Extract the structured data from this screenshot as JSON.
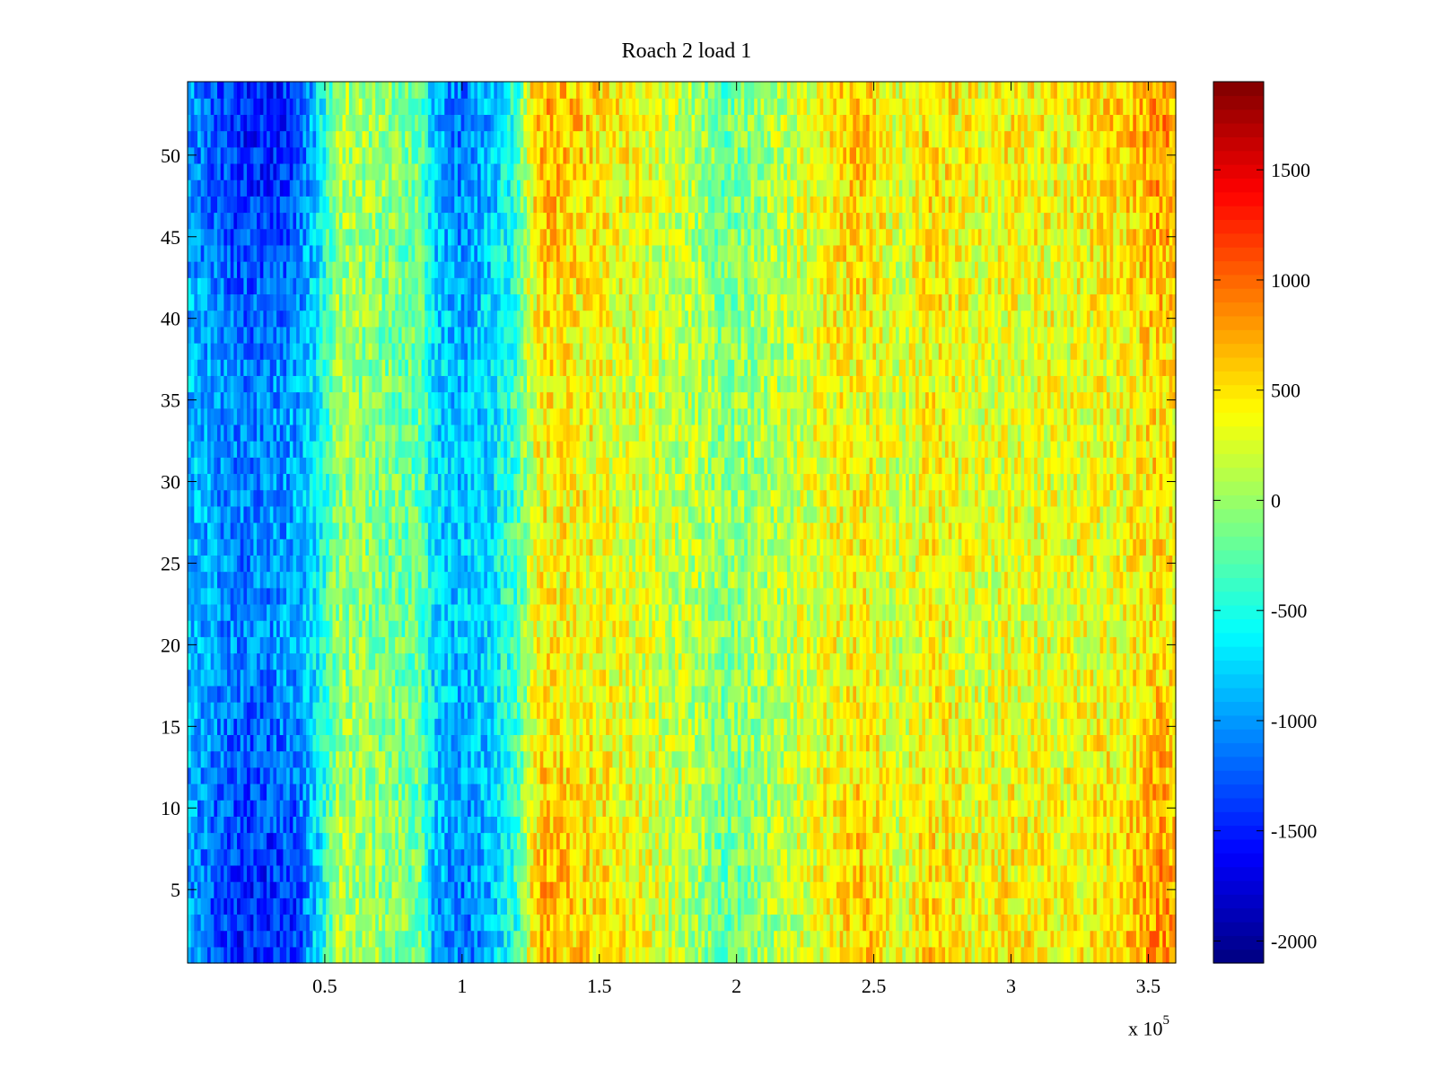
{
  "chart_data": {
    "type": "heatmap",
    "title": "Roach 2 load 1",
    "xlabel": "",
    "ylabel": "",
    "x_multiplier": {
      "base": "x 10",
      "exponent": "5"
    },
    "xlim": [
      0,
      360000
    ],
    "ylim": [
      0.5,
      54.5
    ],
    "rows": 54,
    "x_ticks": [
      {
        "value": 50000,
        "label": "0.5"
      },
      {
        "value": 100000,
        "label": "1"
      },
      {
        "value": 150000,
        "label": "1.5"
      },
      {
        "value": 200000,
        "label": "2"
      },
      {
        "value": 250000,
        "label": "2.5"
      },
      {
        "value": 300000,
        "label": "3"
      },
      {
        "value": 350000,
        "label": "3.5"
      }
    ],
    "y_ticks": [
      {
        "value": 5,
        "label": "5"
      },
      {
        "value": 10,
        "label": "10"
      },
      {
        "value": 15,
        "label": "15"
      },
      {
        "value": 20,
        "label": "20"
      },
      {
        "value": 25,
        "label": "25"
      },
      {
        "value": 30,
        "label": "30"
      },
      {
        "value": 35,
        "label": "35"
      },
      {
        "value": 40,
        "label": "40"
      },
      {
        "value": 45,
        "label": "45"
      },
      {
        "value": 50,
        "label": "50"
      }
    ],
    "colorbar": {
      "colormap": "jet",
      "clim": [
        -2100,
        1900
      ],
      "ticks": [
        {
          "value": -2000,
          "label": "-2000"
        },
        {
          "value": -1500,
          "label": "-1500"
        },
        {
          "value": -1000,
          "label": "-1000"
        },
        {
          "value": -500,
          "label": "-500"
        },
        {
          "value": 0,
          "label": "0"
        },
        {
          "value": 500,
          "label": "500"
        },
        {
          "value": 1000,
          "label": "1000"
        },
        {
          "value": 1500,
          "label": "1500"
        }
      ]
    },
    "column_profile": {
      "x": [
        0,
        10000,
        20000,
        30000,
        40000,
        48000,
        55000,
        70000,
        85000,
        90000,
        100000,
        110000,
        120000,
        125000,
        130000,
        150000,
        170000,
        185000,
        195000,
        210000,
        230000,
        245000,
        260000,
        270000,
        290000,
        300000,
        320000,
        340000,
        355000,
        360000
      ],
      "mean": [
        -800,
        -1000,
        -1100,
        -1050,
        -950,
        -600,
        0,
        -100,
        -250,
        -700,
        -850,
        -700,
        -350,
        200,
        450,
        350,
        200,
        100,
        -50,
        50,
        300,
        400,
        200,
        400,
        250,
        300,
        300,
        350,
        550,
        450
      ],
      "edge_mean": [
        -1000,
        -1300,
        -1500,
        -1500,
        -1350,
        -700,
        100,
        0,
        -150,
        -900,
        -1150,
        -900,
        -400,
        400,
        700,
        500,
        300,
        50,
        -200,
        0,
        350,
        650,
        250,
        550,
        350,
        450,
        400,
        550,
        850,
        650
      ]
    },
    "noise_amplitude": 350
  }
}
